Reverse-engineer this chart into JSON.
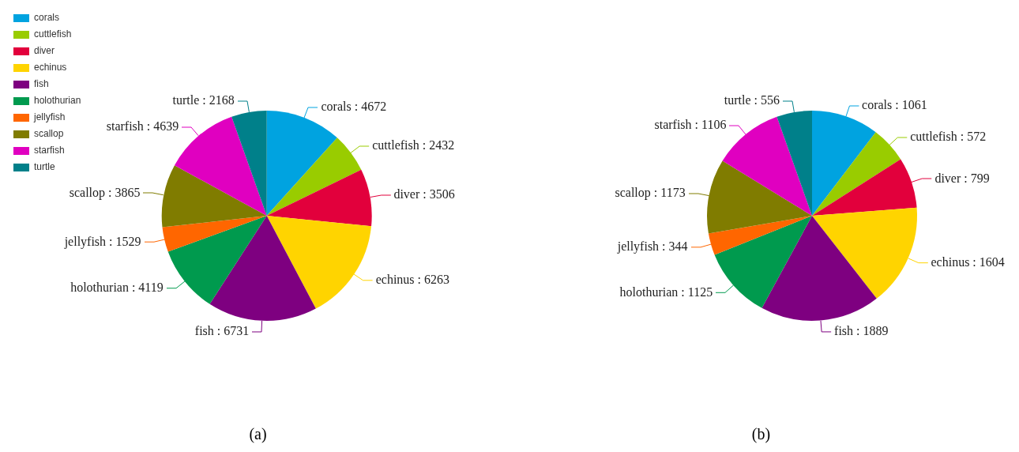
{
  "chart_data": [
    {
      "type": "pie",
      "categories": [
        "corals",
        "cuttlefish",
        "diver",
        "echinus",
        "fish",
        "holothurian",
        "jellyfish",
        "scallop",
        "starfish",
        "turtle"
      ],
      "values": [
        4672,
        2432,
        3506,
        6263,
        6731,
        4119,
        1529,
        3865,
        4639,
        2168
      ],
      "colors": [
        "#00a3e0",
        "#99cc00",
        "#e2003c",
        "#ffd400",
        "#7e0080",
        "#009a4e",
        "#ff6600",
        "#807c00",
        "#e000c0",
        "#00808a"
      ],
      "value_labels": [
        "corals : 4672",
        "cuttlefish : 2432",
        "diver : 3506",
        "echinus : 6263",
        "fish : 6731",
        "holothurian : 4119",
        "jellyfish : 1529",
        "scallop : 3865",
        "starfish : 4639",
        "turtle : 2168"
      ],
      "legend": "top left",
      "annotations": [
        "(a)"
      ]
    },
    {
      "type": "pie",
      "values": [
        1061,
        572,
        799,
        1604,
        1889,
        1125,
        344,
        1173,
        1106,
        556
      ],
      "colors": [
        "#00a3e0",
        "#99cc00",
        "#e2003c",
        "#ffd400",
        "#7e0080",
        "#009a4e",
        "#ff6600",
        "#807c00",
        "#e000c0",
        "#00808a"
      ],
      "value_labels": [
        "corals : 1061",
        "cuttlefish : 572",
        "diver : 799",
        "echinus : 1604",
        "fish : 1889",
        "holothurian : 1125",
        "jellyfish : 344",
        "scallop : 1173",
        "starfish : 1106",
        "turtle : 556"
      ],
      "annotations": [
        "(b)"
      ]
    }
  ]
}
